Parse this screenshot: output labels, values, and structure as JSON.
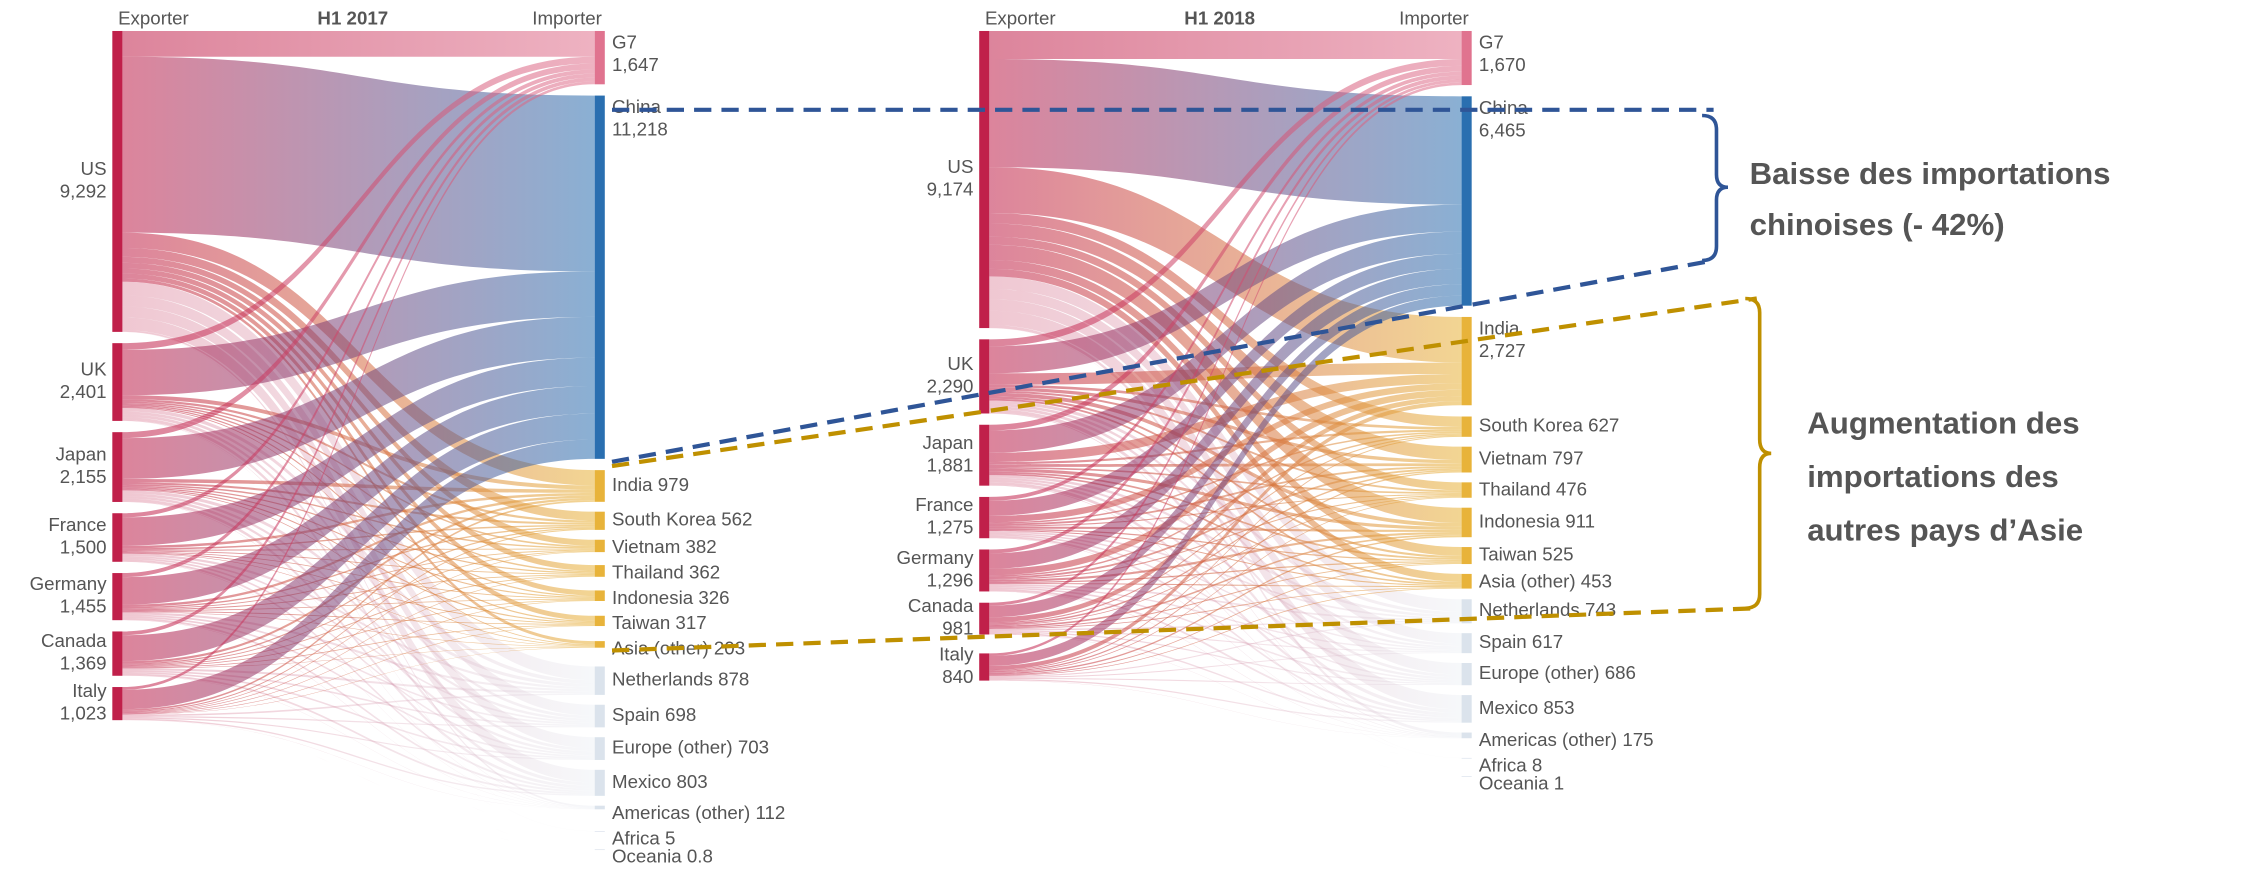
{
  "chart_data": [
    {
      "type": "sankey",
      "title": "H1 2017",
      "source_label": "Exporter",
      "target_label": "Importer",
      "sources": {
        "names": [
          "US",
          "UK",
          "Japan",
          "France",
          "Germany",
          "Canada",
          "Italy"
        ],
        "values": [
          9292,
          2401,
          2155,
          1500,
          1455,
          1369,
          1023
        ],
        "value_labels": [
          "9,292",
          "2,401",
          "2,155",
          "1,500",
          "1,455",
          "1,369",
          "1,023"
        ],
        "color": "#c0204a"
      },
      "targets": {
        "names": [
          "G7",
          "China",
          "India",
          "South Korea",
          "Vietnam",
          "Thailand",
          "Indonesia",
          "Taiwan",
          "Asia (other)",
          "Netherlands",
          "Spain",
          "Europe (other)",
          "Mexico",
          "Americas (other)",
          "Africa",
          "Oceania"
        ],
        "values": [
          1647,
          11218,
          979,
          562,
          382,
          362,
          326,
          317,
          203,
          878,
          698,
          703,
          803,
          112,
          5,
          0.8
        ],
        "value_labels": [
          "1,647",
          "11,218",
          "979",
          "562",
          "382",
          "362",
          "326",
          "317",
          "203",
          "878",
          "698",
          "703",
          "803",
          "112",
          "5",
          "0.8"
        ],
        "colors": [
          "#e0738f",
          "#2a6fb0",
          "#e8b33a",
          "#e8b33a",
          "#e8b33a",
          "#e8b33a",
          "#e8b33a",
          "#e8b33a",
          "#e8b33a",
          "#dbe3ec",
          "#dbe3ec",
          "#dbe3ec",
          "#dbe3ec",
          "#dbe3ec",
          "#dbe3ec",
          "#dbe3ec"
        ]
      }
    },
    {
      "type": "sankey",
      "title": "H1 2018",
      "source_label": "Exporter",
      "target_label": "Importer",
      "sources": {
        "names": [
          "US",
          "UK",
          "Japan",
          "France",
          "Germany",
          "Canada",
          "Italy"
        ],
        "values": [
          9174,
          2290,
          1881,
          1275,
          1296,
          981,
          840
        ],
        "value_labels": [
          "9,174",
          "2,290",
          "1,881",
          "1,275",
          "1,296",
          "981",
          "840"
        ],
        "color": "#c0204a"
      },
      "targets": {
        "names": [
          "G7",
          "China",
          "India",
          "South Korea",
          "Vietnam",
          "Thailand",
          "Indonesia",
          "Taiwan",
          "Asia (other)",
          "Netherlands",
          "Spain",
          "Europe (other)",
          "Mexico",
          "Americas (other)",
          "Africa",
          "Oceania"
        ],
        "values": [
          1670,
          6465,
          2727,
          627,
          797,
          476,
          911,
          525,
          453,
          743,
          617,
          686,
          853,
          175,
          8,
          1
        ],
        "value_labels": [
          "1,670",
          "6,465",
          "2,727",
          "627",
          "797",
          "476",
          "911",
          "525",
          "453",
          "743",
          "617",
          "686",
          "853",
          "175",
          "8",
          "1"
        ],
        "colors": [
          "#e0738f",
          "#2a6fb0",
          "#e8b33a",
          "#e8b33a",
          "#e8b33a",
          "#e8b33a",
          "#e8b33a",
          "#e8b33a",
          "#e8b33a",
          "#dbe3ec",
          "#dbe3ec",
          "#dbe3ec",
          "#dbe3ec",
          "#dbe3ec",
          "#dbe3ec",
          "#dbe3ec"
        ]
      }
    }
  ],
  "annotations": [
    {
      "lines": [
        "Baisse des importations",
        "chinoises (- 42%)"
      ],
      "color": "#2f5597"
    },
    {
      "lines": [
        "Augmentation des",
        "importations  des",
        "autres pays d’Asie"
      ],
      "color": "#bf9000"
    }
  ]
}
